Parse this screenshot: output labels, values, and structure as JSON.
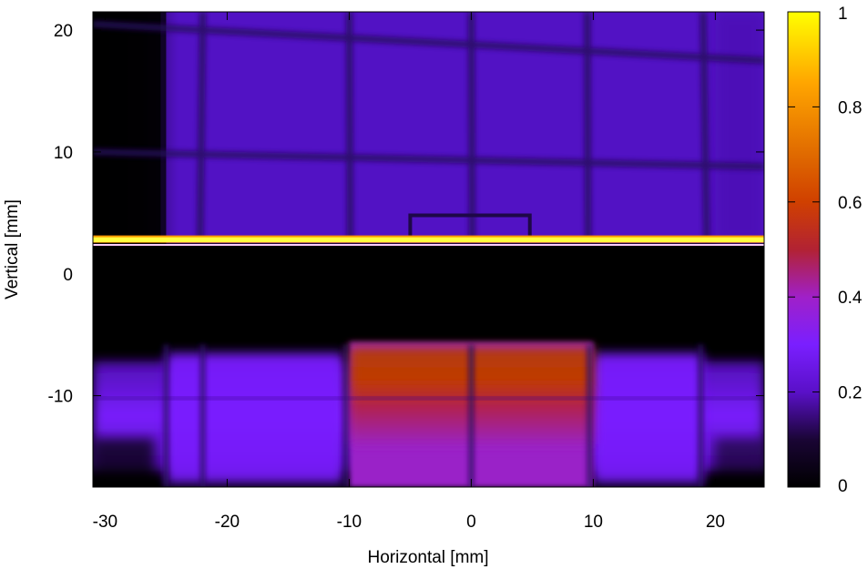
{
  "chart_data": {
    "type": "heatmap",
    "title": "",
    "xlabel": "Horizontal [mm]",
    "ylabel": "Vertical [mm]",
    "xlim": [
      -31,
      24
    ],
    "ylim": [
      -17.5,
      21.5
    ],
    "xticks": [
      -30,
      -20,
      -10,
      0,
      10,
      20
    ],
    "yticks": [
      -10,
      0,
      10,
      20
    ],
    "xtick_labels": [
      "-30",
      "-20",
      "-10",
      "0",
      "10",
      "20"
    ],
    "ytick_labels": [
      "-10",
      "0",
      "10",
      "20"
    ],
    "colorbar": {
      "range": [
        0,
        1
      ],
      "ticks": [
        0,
        0.2,
        0.4,
        0.6,
        0.8,
        1
      ],
      "tick_labels": [
        "0",
        "0.2",
        "0.4",
        "0.6",
        "0.8",
        "1"
      ],
      "colormap": [
        "#000000",
        "#3c0a78",
        "#7a1fff",
        "#a020c8",
        "#b22222",
        "#e86a00",
        "#ffa500",
        "#ffff00"
      ]
    },
    "grid": false,
    "legend": "none",
    "regions": [
      {
        "name": "upper field",
        "x": [
          -25,
          24
        ],
        "y": [
          2.5,
          21.5
        ],
        "value": 0.2
      },
      {
        "name": "upper left dark band",
        "x": [
          -31,
          -25
        ],
        "y": [
          2.5,
          21.5
        ],
        "value": 0.02
      },
      {
        "name": "gap",
        "x": [
          -31,
          24
        ],
        "y": [
          -5.5,
          2.3
        ],
        "value": 0.0
      },
      {
        "name": "bright horizontal line",
        "x": [
          -31,
          24
        ],
        "y": [
          2.6,
          3.0
        ],
        "value": 1.0
      },
      {
        "name": "lower beam outer",
        "x": [
          -31,
          24
        ],
        "y": [
          -17.5,
          -5.5
        ],
        "value": 0.25
      },
      {
        "name": "lower beam core",
        "x": [
          -10,
          10
        ],
        "y": [
          -14,
          -6
        ],
        "value": 0.55
      }
    ],
    "grid_lines_in_image": {
      "x": [
        -22,
        -10,
        0,
        9.5,
        19
      ],
      "y": [
        4.5,
        9.5,
        19.0
      ]
    }
  }
}
